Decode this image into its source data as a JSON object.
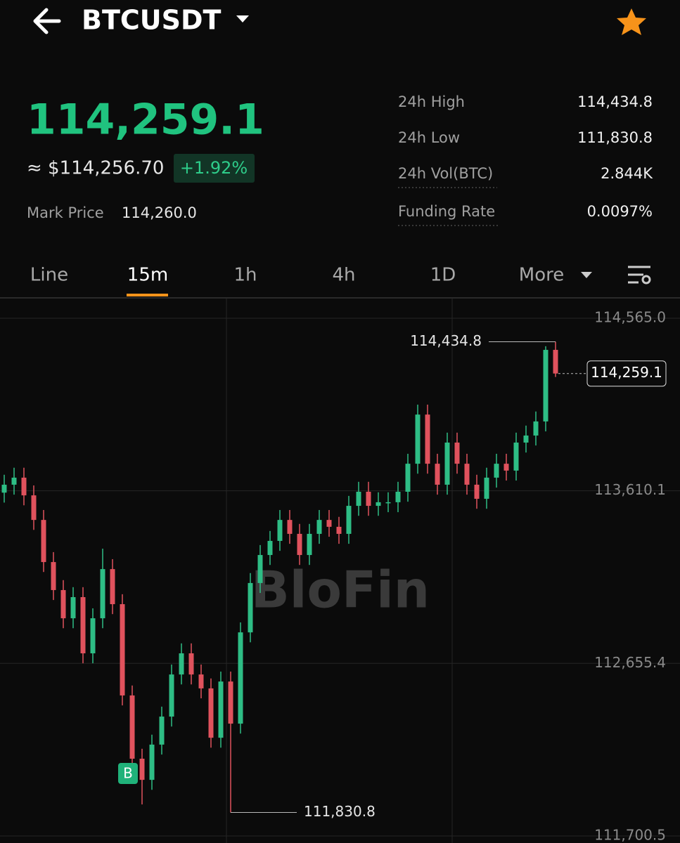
{
  "header": {
    "symbol": "BTCUSDT"
  },
  "ticker": {
    "last_price": "114,259.1",
    "usd_price": "≈ $114,256.70",
    "change": "+1.92%",
    "mark_price_label": "Mark Price",
    "mark_price": "114,260.0"
  },
  "stats": [
    {
      "label": "24h High",
      "value": "114,434.8"
    },
    {
      "label": "24h Low",
      "value": "111,830.8"
    },
    {
      "label": "24h Vol(BTC)",
      "value": "2.844K"
    },
    {
      "label": "Funding Rate",
      "value": "0.0097%"
    }
  ],
  "tabs": [
    "Line",
    "15m",
    "1h",
    "4h",
    "1D",
    "More"
  ],
  "chart_data": {
    "type": "candlestick",
    "watermark": "BloFin",
    "marker": "B",
    "grid": true,
    "colors": {
      "up": "#2ebd85",
      "down": "#e0525d"
    },
    "ylim": [
      111661.6,
      114673.8
    ],
    "yticks": [
      {
        "value": 111700.5,
        "label": "111,700.5"
      },
      {
        "value": 112655.4,
        "label": "112,655.4"
      },
      {
        "value": 113610.1,
        "label": "113,610.1"
      },
      {
        "value": 114565.0,
        "label": "114,565.0"
      }
    ],
    "open": [
      113600,
      113644,
      113683,
      113585,
      113449,
      113216,
      113061,
      112905,
      113022,
      112711,
      112905,
      113177,
      112983,
      112478,
      112128,
      112011,
      112206,
      112361,
      112594,
      112711,
      112594,
      112517,
      112244,
      112555,
      112322,
      112827,
      113100,
      113255,
      113333,
      113449,
      113372,
      113255,
      113372,
      113449,
      113411,
      113372,
      113527,
      113605,
      113527,
      113547,
      113547,
      113605,
      113760,
      114032,
      113760,
      113644,
      113877,
      113760,
      113644,
      113566,
      113683,
      113760,
      113722,
      113877,
      113916,
      113994,
      114390
    ],
    "high": [
      113699,
      113738,
      113738,
      113640,
      113504,
      113271,
      113116,
      113077,
      113077,
      112960,
      113290,
      113232,
      113038,
      112533,
      112183,
      112261,
      112416,
      112649,
      112766,
      112766,
      112649,
      112572,
      112610,
      112610,
      112882,
      113155,
      113310,
      113388,
      113504,
      113504,
      113427,
      113427,
      113504,
      113504,
      113466,
      113582,
      113660,
      113660,
      113602,
      113602,
      113660,
      113815,
      114087,
      114087,
      113815,
      113932,
      113932,
      113815,
      113699,
      113738,
      113815,
      113815,
      113932,
      113971,
      114049,
      114410,
      114434.8
    ],
    "low": [
      113545,
      113589,
      113530,
      113394,
      113161,
      113006,
      112850,
      112850,
      112656,
      112656,
      112850,
      112928,
      112423,
      112073,
      111875,
      111956,
      112151,
      112306,
      112539,
      112539,
      112462,
      112189,
      112189,
      111830.8,
      112267,
      112772,
      113045,
      113200,
      113278,
      113317,
      113200,
      113200,
      113317,
      113356,
      113317,
      113317,
      113472,
      113472,
      113472,
      113492,
      113492,
      113550,
      113705,
      113705,
      113589,
      113589,
      113705,
      113589,
      113511,
      113511,
      113628,
      113667,
      113667,
      113822,
      113861,
      113939,
      114240
    ],
    "close": [
      113644,
      113683,
      113585,
      113449,
      113216,
      113061,
      112905,
      113022,
      112711,
      112905,
      113177,
      112983,
      112478,
      112128,
      112011,
      112206,
      112361,
      112594,
      112711,
      112594,
      112517,
      112244,
      112555,
      112322,
      112827,
      113100,
      113255,
      113333,
      113449,
      113372,
      113255,
      113372,
      113449,
      113411,
      113372,
      113527,
      113605,
      113527,
      113547,
      113547,
      113605,
      113760,
      114032,
      113760,
      113644,
      113877,
      113760,
      113644,
      113566,
      113683,
      113760,
      113722,
      113877,
      113916,
      113994,
      114390,
      114259.1
    ],
    "annotations": [
      {
        "value": 114434.8,
        "label": "114,434.8"
      },
      {
        "value": 111830.8,
        "label": "111,830.8"
      }
    ],
    "last_price": {
      "value": 114259.1,
      "label": "114,259.1"
    }
  }
}
